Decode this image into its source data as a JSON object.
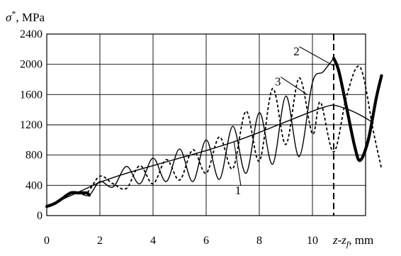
{
  "chart_data": {
    "type": "line",
    "ylabel_symbol": "σ",
    "ylabel_sup": "*",
    "ylabel_unit": ", MPa",
    "xlabel_main": "z-z",
    "xlabel_sub": "f",
    "xlabel_unit": ", mm",
    "xlim": [
      0,
      12
    ],
    "ylim": [
      0,
      2400
    ],
    "xticks": [
      0,
      2,
      4,
      6,
      8,
      10
    ],
    "yticks": [
      0,
      400,
      800,
      1200,
      1600,
      2000,
      2400
    ],
    "grid": true,
    "vline": {
      "x": 10.8,
      "style": "dashed"
    },
    "series": [
      {
        "name": "1",
        "style": "thin-solid",
        "x": [
          0,
          0.5,
          1,
          1.5,
          2,
          3,
          4,
          5,
          6,
          7,
          8,
          9,
          10,
          10.5,
          10.8,
          11.2,
          11.5,
          12,
          12.3
        ],
        "y": [
          120,
          200,
          280,
          360,
          440,
          560,
          660,
          760,
          860,
          970,
          1100,
          1240,
          1380,
          1440,
          1460,
          1420,
          1380,
          1290,
          1220
        ]
      },
      {
        "name": "2",
        "style": "solid",
        "x": [
          0,
          0.3,
          0.6,
          0.9,
          1.2,
          1.6,
          2,
          2.5,
          3,
          3.5,
          4,
          4.5,
          5,
          5.5,
          6,
          6.5,
          7,
          7.5,
          8,
          8.5,
          9,
          9.5,
          10,
          10.4,
          10.8
        ],
        "y": [
          120,
          160,
          230,
          300,
          300,
          270,
          450,
          380,
          650,
          420,
          760,
          450,
          880,
          450,
          1000,
          480,
          1180,
          560,
          1360,
          680,
          1580,
          780,
          1760,
          1900,
          2080
        ]
      },
      {
        "name": "2-bold",
        "style": "bold-solid",
        "x": [
          0,
          0.3,
          0.6,
          0.9,
          1.2,
          1.5,
          1.6
        ],
        "y": [
          120,
          160,
          230,
          300,
          300,
          300,
          270
        ]
      },
      {
        "name": "2-bold-end",
        "style": "bold-solid",
        "x": [
          10.8,
          11.0,
          11.3,
          11.6,
          11.8,
          12.1,
          12.4,
          12.6
        ],
        "y": [
          2080,
          1900,
          1400,
          900,
          730,
          1000,
          1550,
          1850
        ]
      },
      {
        "name": "3",
        "style": "dashed",
        "x": [
          0,
          0.5,
          1,
          1.5,
          2,
          2.5,
          3,
          3.5,
          4,
          4.5,
          5,
          5.5,
          6,
          6.5,
          7,
          7.5,
          8,
          8.5,
          9,
          9.5,
          10,
          10.3,
          10.8,
          11.3,
          11.8,
          12.3,
          12.6
        ],
        "y": [
          110,
          200,
          300,
          300,
          520,
          420,
          360,
          660,
          420,
          740,
          470,
          870,
          560,
          1040,
          620,
          1380,
          720,
          1680,
          940,
          1820,
          1080,
          1500,
          840,
          1600,
          1960,
          1100,
          620
        ]
      }
    ],
    "annotations": [
      {
        "text": "1",
        "x": 7.2,
        "y": 280,
        "target_x": 7.05,
        "target_y": 970
      },
      {
        "text": "2",
        "x": 9.4,
        "y": 2120,
        "target_x": 10.8,
        "target_y": 1980
      },
      {
        "text": "3",
        "x": 8.7,
        "y": 1720,
        "target_x": 9.8,
        "target_y": 1600
      }
    ]
  }
}
